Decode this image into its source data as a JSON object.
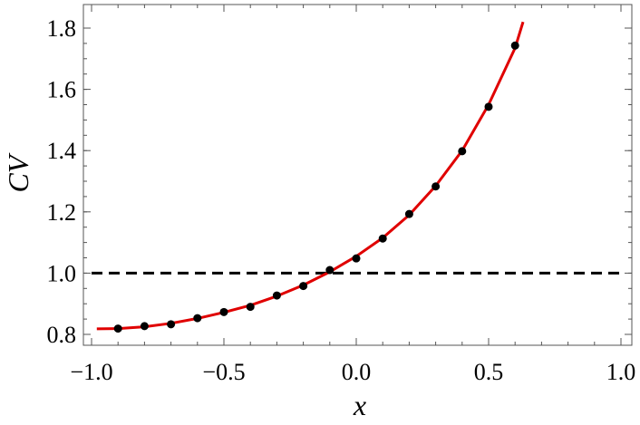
{
  "chart_data": {
    "type": "scatter",
    "title": "",
    "xlabel": "x",
    "ylabel": "CV",
    "xlim": [
      -1.0,
      1.0
    ],
    "ylim": [
      0.76,
      1.87
    ],
    "xticks": [
      -1.0,
      -0.5,
      0.0,
      0.5,
      1.0
    ],
    "xtick_labels": [
      "−1.0",
      "−0.5",
      "0.0",
      "0.5",
      "1.0"
    ],
    "yticks": [
      0.8,
      1.0,
      1.2,
      1.4,
      1.6,
      1.8
    ],
    "ytick_labels": [
      "0.8",
      "1.0",
      "1.2",
      "1.4",
      "1.6",
      "1.8"
    ],
    "grid": false,
    "series": [
      {
        "kind": "points",
        "color": "#000000",
        "x": [
          -0.9,
          -0.8,
          -0.7,
          -0.6,
          -0.5,
          -0.4,
          -0.3,
          -0.2,
          -0.1,
          0.0,
          0.1,
          0.2,
          0.3,
          0.4,
          0.5,
          0.6
        ],
        "y": [
          0.819,
          0.827,
          0.833,
          0.853,
          0.873,
          0.89,
          0.927,
          0.958,
          1.01,
          1.048,
          1.113,
          1.193,
          1.283,
          1.398,
          1.543,
          1.743
        ]
      },
      {
        "kind": "fitted-curve",
        "color": "#e00000",
        "x": [
          -0.98,
          -0.9,
          -0.8,
          -0.7,
          -0.6,
          -0.5,
          -0.4,
          -0.3,
          -0.2,
          -0.1,
          0.0,
          0.1,
          0.2,
          0.3,
          0.4,
          0.5,
          0.6,
          0.63
        ],
        "y": [
          0.818,
          0.819,
          0.825,
          0.836,
          0.852,
          0.872,
          0.895,
          0.925,
          0.961,
          1.004,
          1.055,
          1.115,
          1.19,
          1.285,
          1.4,
          1.55,
          1.735,
          1.82
        ]
      },
      {
        "kind": "reference-line",
        "color": "#000000",
        "style": "dashed",
        "y": 1.0
      }
    ]
  }
}
